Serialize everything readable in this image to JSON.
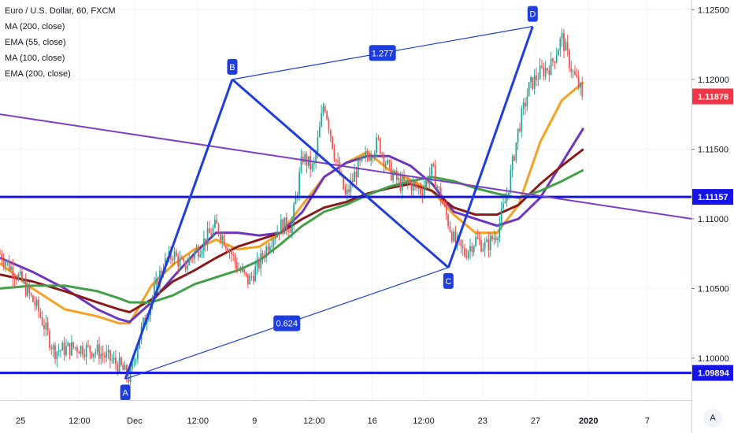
{
  "legend": {
    "symbol": "Euro / U.S. Dollar, 60, FXCM",
    "studies": [
      "MA (200, close)",
      "EMA (55, close)",
      "MA (100, close)",
      "EMA (200, close)"
    ]
  },
  "scale_button": "A",
  "colors": {
    "up": "#26a69a",
    "down": "#ef5350",
    "pattern": "#1e3dde",
    "trend": "#7b3fc4",
    "ema55": "#f5a124",
    "ma100": "#6c36bf",
    "ema200": "#8b1a1a",
    "ma200": "#43a047",
    "hline": "#1414e6",
    "price_tag": "#f23645"
  },
  "chart_data": {
    "type": "candlestick",
    "symbol": "Euro / U.S. Dollar",
    "interval": "60",
    "source": "FXCM",
    "x_ticks": [
      "25",
      "12:00",
      "Dec",
      "12:00",
      "9",
      "12:00",
      "16",
      "12:00",
      "23",
      "27",
      "2020",
      "7"
    ],
    "y_ticks": [
      1.125,
      1.12,
      1.115,
      1.11,
      1.105,
      1.1
    ],
    "ylim": [
      1.097,
      1.1257
    ],
    "last_price": 1.11878,
    "horizontal_levels": [
      1.11157,
      1.09894
    ],
    "price_path": [
      [
        0,
        1.1075
      ],
      [
        2,
        1.1055
      ],
      [
        3.5,
        1.1035
      ],
      [
        5,
        1.1005
      ],
      [
        7,
        1.1008
      ],
      [
        9,
        1.1005
      ],
      [
        11,
        1.0995
      ],
      [
        12,
        1.0985
      ],
      [
        13,
        1.1018
      ],
      [
        15,
        1.1065
      ],
      [
        16,
        1.1075
      ],
      [
        17,
        1.1065
      ],
      [
        18,
        1.1075
      ],
      [
        20,
        1.1095
      ],
      [
        21,
        1.1082
      ],
      [
        22,
        1.1065
      ],
      [
        23,
        1.1055
      ],
      [
        24,
        1.1068
      ],
      [
        25,
        1.1085
      ],
      [
        26,
        1.1095
      ],
      [
        27,
        1.1095
      ],
      [
        28,
        1.1145
      ],
      [
        29,
        1.1135
      ],
      [
        30,
        1.1185
      ],
      [
        31,
        1.1145
      ],
      [
        32,
        1.1115
      ],
      [
        33,
        1.1135
      ],
      [
        34,
        1.1145
      ],
      [
        35,
        1.1155
      ],
      [
        36,
        1.1135
      ],
      [
        37,
        1.1125
      ],
      [
        38,
        1.1125
      ],
      [
        39,
        1.112
      ],
      [
        40,
        1.1135
      ],
      [
        41,
        1.111
      ],
      [
        42,
        1.1085
      ],
      [
        43,
        1.1075
      ],
      [
        44,
        1.1085
      ],
      [
        45,
        1.108
      ],
      [
        46,
        1.109
      ],
      [
        47,
        1.112
      ],
      [
        48,
        1.1165
      ],
      [
        49,
        1.1195
      ],
      [
        50,
        1.1205
      ],
      [
        51,
        1.121
      ],
      [
        52,
        1.123
      ],
      [
        53,
        1.1205
      ],
      [
        54,
        1.11878
      ]
    ],
    "series": [
      {
        "name": "EMA (55, close)",
        "color": "#f5a124",
        "x": [
          0,
          3,
          6,
          9,
          11,
          12,
          14,
          16,
          18,
          20,
          22,
          24,
          26,
          28,
          30,
          32,
          34,
          36,
          38,
          40,
          42,
          44,
          46,
          48,
          50,
          52,
          54
        ],
        "y": [
          1.1068,
          1.105,
          1.1035,
          1.103,
          1.1025,
          1.1025,
          1.1052,
          1.1067,
          1.1078,
          1.1085,
          1.1078,
          1.108,
          1.109,
          1.111,
          1.113,
          1.114,
          1.1148,
          1.1135,
          1.1128,
          1.112,
          1.1103,
          1.109,
          1.109,
          1.111,
          1.1155,
          1.1185,
          1.1198
        ]
      },
      {
        "name": "MA (100, close)",
        "color": "#6c36bf",
        "x": [
          0,
          3,
          6,
          9,
          11,
          12,
          14,
          16,
          18,
          20,
          22,
          24,
          26,
          28,
          30,
          32,
          34,
          36,
          38,
          40,
          42,
          44,
          46,
          48,
          50,
          52,
          54
        ],
        "y": [
          1.1072,
          1.1062,
          1.105,
          1.1035,
          1.1028,
          1.1026,
          1.104,
          1.1058,
          1.1075,
          1.109,
          1.109,
          1.1088,
          1.109,
          1.1105,
          1.113,
          1.114,
          1.1145,
          1.1145,
          1.1138,
          1.1125,
          1.1105,
          1.11,
          1.1095,
          1.11,
          1.1115,
          1.114,
          1.1165
        ]
      },
      {
        "name": "EMA (200, close)",
        "color": "#8b1a1a",
        "x": [
          0,
          3,
          6,
          9,
          11,
          12,
          14,
          16,
          18,
          20,
          22,
          24,
          26,
          28,
          30,
          32,
          34,
          36,
          38,
          40,
          42,
          44,
          46,
          48,
          50,
          52,
          54
        ],
        "y": [
          1.106,
          1.1055,
          1.1048,
          1.104,
          1.1035,
          1.1033,
          1.1042,
          1.1055,
          1.1063,
          1.1072,
          1.108,
          1.1085,
          1.109,
          1.11,
          1.1108,
          1.1112,
          1.1118,
          1.1122,
          1.1125,
          1.112,
          1.1108,
          1.1103,
          1.1103,
          1.111,
          1.1125,
          1.1138,
          1.115
        ]
      },
      {
        "name": "MA (200, close)",
        "color": "#43a047",
        "x": [
          0,
          3,
          6,
          9,
          11,
          12,
          14,
          16,
          18,
          20,
          22,
          24,
          26,
          28,
          30,
          32,
          34,
          36,
          38,
          40,
          42,
          44,
          46,
          48,
          50,
          52,
          54
        ],
        "y": [
          1.105,
          1.1052,
          1.1052,
          1.1048,
          1.1043,
          1.104,
          1.104,
          1.1045,
          1.1053,
          1.1058,
          1.1063,
          1.107,
          1.1082,
          1.1095,
          1.1105,
          1.111,
          1.1117,
          1.1123,
          1.1127,
          1.113,
          1.1127,
          1.1122,
          1.1118,
          1.1115,
          1.112,
          1.1127,
          1.1135
        ]
      }
    ],
    "pattern": {
      "points": [
        {
          "label": "A",
          "x": 11.6,
          "y": 1.0985
        },
        {
          "label": "B",
          "x": 21.5,
          "y": 1.12
        },
        {
          "label": "C",
          "x": 41.5,
          "y": 1.1065
        },
        {
          "label": "D",
          "x": 49.3,
          "y": 1.1238
        }
      ],
      "ratios": [
        {
          "label": "1.277",
          "between": [
            "B",
            "D"
          ]
        },
        {
          "label": "0.624",
          "between": [
            "A",
            "C"
          ]
        }
      ]
    },
    "trendline": {
      "x": [
        0,
        64
      ],
      "y": [
        1.1175,
        1.11
      ]
    }
  }
}
